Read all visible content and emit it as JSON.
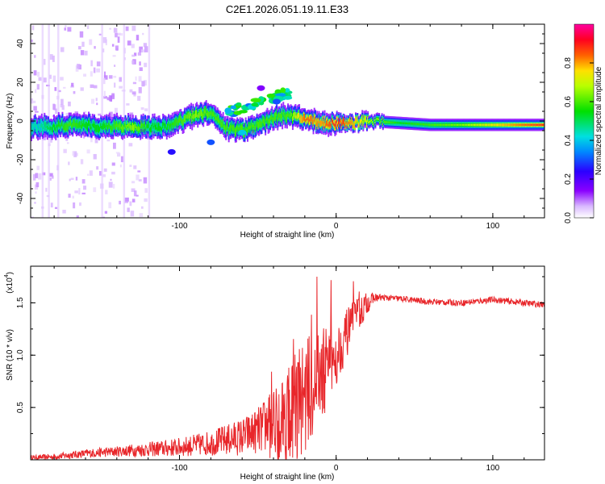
{
  "chart_data": [
    {
      "type": "heatmap",
      "title": "C2E1.2026.051.19.11.E33",
      "xlabel": "Height of straight line (km)",
      "ylabel": "Frequency (Hz)",
      "xlim": [
        -195,
        133
      ],
      "ylim": [
        -50,
        50
      ],
      "xticks": [
        -100,
        0,
        100
      ],
      "xtick_labels": [
        "-100",
        "0",
        "100"
      ],
      "yticks": [
        -40,
        -20,
        0,
        20,
        40
      ],
      "ytick_labels": [
        "-40",
        "-20",
        "0",
        "20",
        "40"
      ],
      "colorbar": {
        "label": "Normalized spectral amplitude",
        "range": [
          0,
          1
        ],
        "ticks": [
          0.0,
          0.2,
          0.4,
          0.6,
          0.8
        ],
        "tick_labels": [
          "0.0",
          "0.2",
          "0.4",
          "0.6",
          "0.8"
        ],
        "colormap": "rainbow (white-violet-blue-cyan-green-yellow-red-magenta)"
      },
      "ridge": {
        "description": "main spectral ridge: frequency (Hz) vs height, with amplitude 0-1",
        "x": [
          -190,
          -180,
          -170,
          -160,
          -150,
          -140,
          -130,
          -120,
          -110,
          -100,
          -90,
          -80,
          -70,
          -60,
          -50,
          -40,
          -30,
          -20,
          -10,
          0,
          10,
          20,
          40,
          60,
          80,
          100,
          120,
          133
        ],
        "y": [
          -3,
          -3,
          -2,
          -2,
          -3,
          -3,
          -3,
          -3,
          -3,
          0,
          3,
          4,
          -4,
          -5,
          -2,
          2,
          3,
          1,
          -1,
          -1,
          -1,
          0,
          -1,
          -2,
          -2,
          -2,
          -2,
          -2
        ],
        "amp": [
          0.45,
          0.55,
          0.6,
          0.55,
          0.55,
          0.6,
          0.65,
          0.55,
          0.55,
          0.6,
          0.65,
          0.6,
          0.6,
          0.6,
          0.6,
          0.6,
          0.6,
          0.85,
          0.8,
          0.9,
          0.8,
          0.7,
          0.55,
          0.6,
          0.65,
          0.75,
          0.85,
          0.9
        ]
      }
    },
    {
      "type": "line",
      "xlabel": "Height of straight line (km)",
      "ylabel": "SNR (10 * v/v)",
      "scale_label": "(x10",
      "scale_exponent": "4",
      "xlim": [
        -195,
        133
      ],
      "ylim": [
        0,
        1.85
      ],
      "xticks": [
        -100,
        0,
        100
      ],
      "xtick_labels": [
        "-100",
        "0",
        "100"
      ],
      "yticks": [
        0.5,
        1.0,
        1.5
      ],
      "ytick_labels": [
        "0.5",
        "1.0",
        "1.5"
      ],
      "series": [
        {
          "name": "SNR",
          "color": "#e8262a",
          "x": [
            -195,
            -180,
            -160,
            -140,
            -120,
            -100,
            -80,
            -60,
            -50,
            -40,
            -35,
            -30,
            -25,
            -20,
            -15,
            -10,
            -5,
            0,
            5,
            10,
            15,
            20,
            25,
            30,
            40,
            60,
            80,
            100,
            120,
            133
          ],
          "baseline": [
            0.02,
            0.03,
            0.06,
            0.08,
            0.1,
            0.12,
            0.16,
            0.22,
            0.28,
            0.35,
            0.4,
            0.45,
            0.55,
            0.62,
            0.7,
            0.8,
            0.9,
            1.0,
            1.15,
            1.3,
            1.4,
            1.5,
            1.55,
            1.55,
            1.54,
            1.51,
            1.5,
            1.53,
            1.5,
            1.48
          ],
          "noise": [
            0.02,
            0.03,
            0.04,
            0.05,
            0.07,
            0.09,
            0.12,
            0.18,
            0.22,
            0.35,
            0.45,
            0.5,
            0.55,
            0.55,
            0.5,
            0.45,
            0.4,
            0.3,
            0.25,
            0.2,
            0.18,
            0.1,
            0.04,
            0.03,
            0.03,
            0.03,
            0.03,
            0.03,
            0.03,
            0.03
          ]
        }
      ]
    }
  ]
}
